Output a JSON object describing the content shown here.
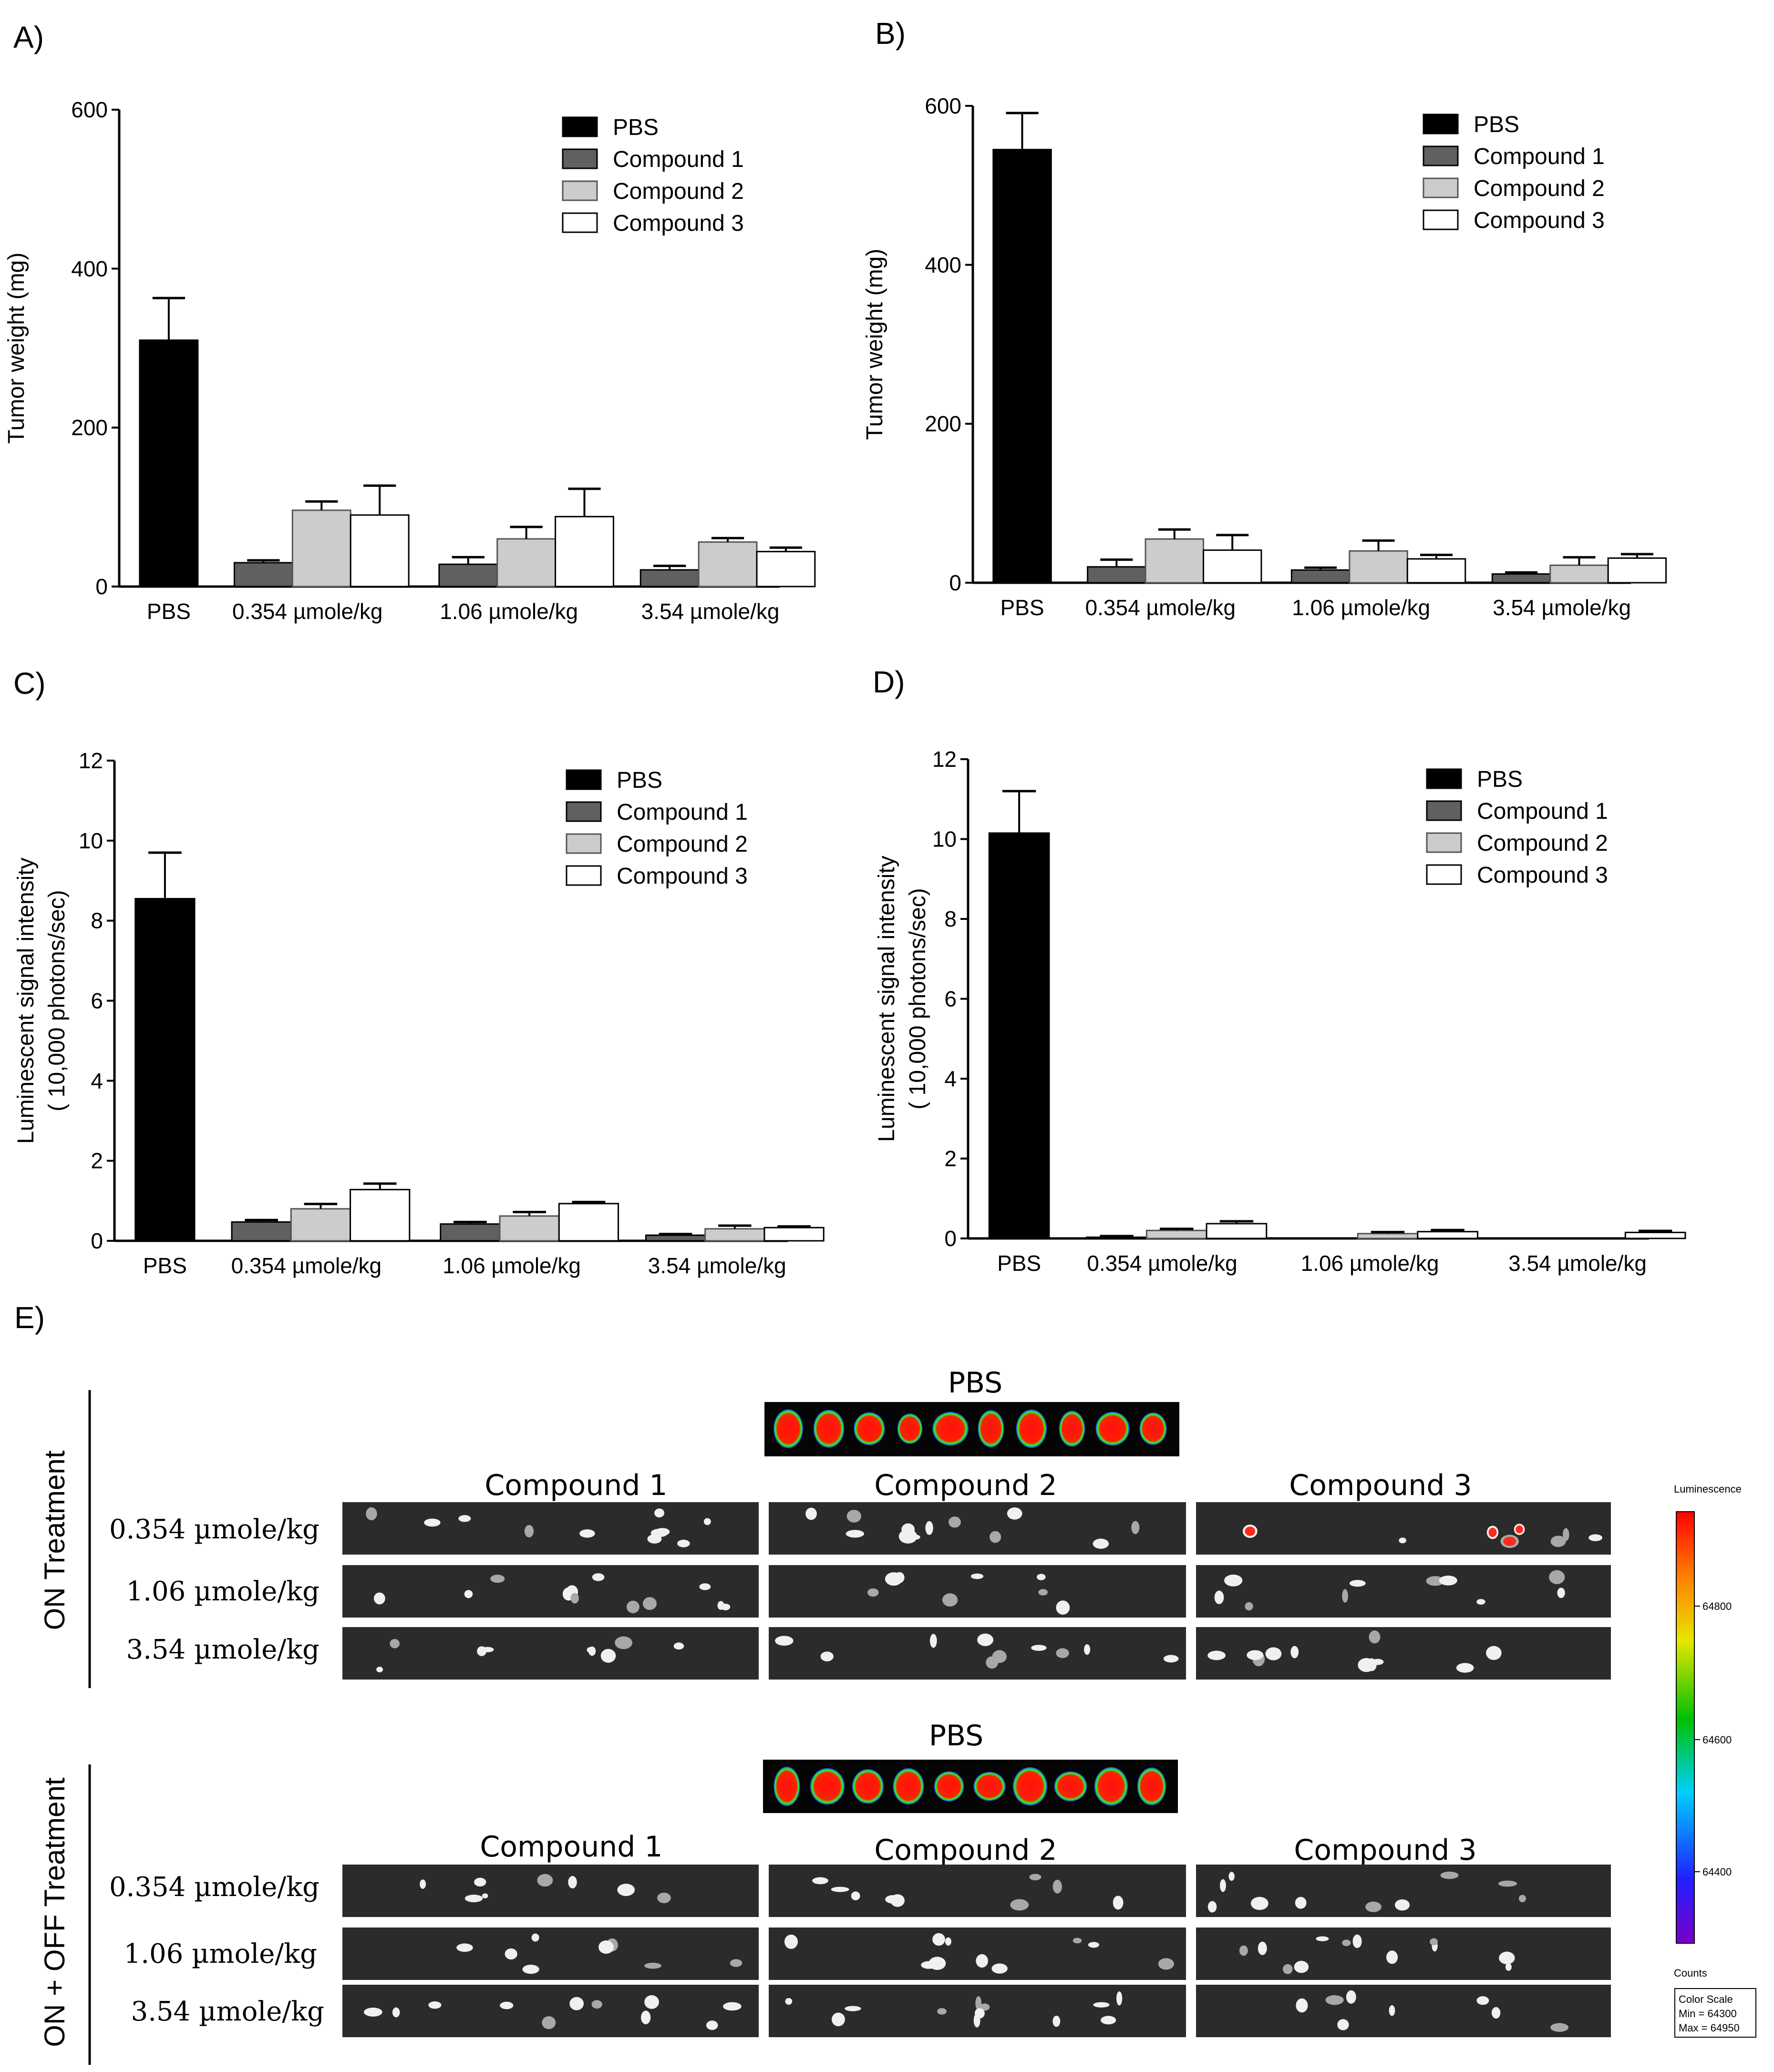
{
  "chart_data": [
    {
      "type": "bar",
      "panel": "A)",
      "ylabel": "Tumor weight (mg)",
      "ylim": [
        0,
        600
      ],
      "yticks": [
        "0",
        "200",
        "400",
        "600"
      ],
      "categories": [
        "PBS",
        "0.354 µmole/kg",
        "1.06 µmole/kg",
        "3.54 µmole/kg"
      ],
      "legend": [
        "PBS",
        "Compound 1",
        "Compound 2",
        "Compound 3"
      ],
      "series": [
        {
          "name": "PBS",
          "values": [
            310,
            null,
            null,
            null
          ],
          "errors": [
            53,
            null,
            null,
            null
          ]
        },
        {
          "name": "Compound 1",
          "values": [
            null,
            30,
            28,
            21
          ],
          "errors": [
            null,
            3,
            9,
            5
          ]
        },
        {
          "name": "Compound 2",
          "values": [
            null,
            96,
            60,
            56
          ],
          "errors": [
            null,
            11,
            15,
            5
          ]
        },
        {
          "name": "Compound 3",
          "values": [
            null,
            90,
            88,
            44
          ],
          "errors": [
            null,
            37,
            35,
            5
          ]
        }
      ]
    },
    {
      "type": "bar",
      "panel": "B)",
      "ylabel": "Tumor weight (mg)",
      "ylim": [
        0,
        600
      ],
      "yticks": [
        "0",
        "200",
        "400",
        "600"
      ],
      "categories": [
        "PBS",
        "0.354 µmole/kg",
        "1.06 µmole/kg",
        "3.54 µmole/kg"
      ],
      "legend": [
        "PBS",
        "Compound 1",
        "Compound 2",
        "Compound 3"
      ],
      "series": [
        {
          "name": "PBS",
          "values": [
            545,
            null,
            null,
            null
          ],
          "errors": [
            46,
            null,
            null,
            null
          ]
        },
        {
          "name": "Compound 1",
          "values": [
            null,
            20,
            16,
            11
          ],
          "errors": [
            null,
            9,
            3,
            2
          ]
        },
        {
          "name": "Compound 2",
          "values": [
            null,
            55,
            40,
            22
          ],
          "errors": [
            null,
            12,
            13,
            10
          ]
        },
        {
          "name": "Compound 3",
          "values": [
            null,
            41,
            30,
            31
          ],
          "errors": [
            null,
            19,
            5,
            5
          ]
        }
      ]
    },
    {
      "type": "bar",
      "panel": "C)",
      "ylabel": "Luminescent signal intensity",
      "ylabel2": "( 10,000 photons/sec)",
      "ylim": [
        0,
        12
      ],
      "yticks": [
        "0",
        "2",
        "4",
        "6",
        "8",
        "10",
        "12"
      ],
      "categories": [
        "PBS",
        "0.354 µmole/kg",
        "1.06 µmole/kg",
        "3.54 µmole/kg"
      ],
      "legend": [
        "PBS",
        "Compound 1",
        "Compound 2",
        "Compound 3"
      ],
      "series": [
        {
          "name": "PBS",
          "values": [
            8.55,
            null,
            null,
            null
          ],
          "errors": [
            1.15,
            null,
            null,
            null
          ]
        },
        {
          "name": "Compound 1",
          "values": [
            null,
            0.47,
            0.42,
            0.14
          ],
          "errors": [
            null,
            0.05,
            0.05,
            0.03
          ]
        },
        {
          "name": "Compound 2",
          "values": [
            null,
            0.8,
            0.62,
            0.3
          ],
          "errors": [
            null,
            0.12,
            0.1,
            0.08
          ]
        },
        {
          "name": "Compound 3",
          "values": [
            null,
            1.28,
            0.93,
            0.33
          ],
          "errors": [
            null,
            0.15,
            0.04,
            0.03
          ]
        }
      ]
    },
    {
      "type": "bar",
      "panel": "D)",
      "ylabel": "Luminescent signal intensity",
      "ylabel2": "( 10,000 photons/sec)",
      "ylim": [
        0,
        12
      ],
      "yticks": [
        "0",
        "2",
        "4",
        "6",
        "8",
        "10",
        "12"
      ],
      "categories": [
        "PBS",
        "0.354 µmole/kg",
        "1.06 µmole/kg",
        "3.54 µmole/kg"
      ],
      "legend": [
        "PBS",
        "Compound 1",
        "Compound 2",
        "Compound 3"
      ],
      "series": [
        {
          "name": "PBS",
          "values": [
            10.15,
            null,
            null,
            null
          ],
          "errors": [
            1.05,
            null,
            null,
            null
          ]
        },
        {
          "name": "Compound 1",
          "values": [
            null,
            0.03,
            0.0,
            0.0
          ],
          "errors": [
            null,
            0.03,
            0.0,
            0.0
          ]
        },
        {
          "name": "Compound 2",
          "values": [
            null,
            0.2,
            0.12,
            0.0
          ],
          "errors": [
            null,
            0.04,
            0.04,
            0.0
          ]
        },
        {
          "name": "Compound 3",
          "values": [
            null,
            0.37,
            0.17,
            0.15
          ],
          "errors": [
            null,
            0.06,
            0.04,
            0.04
          ]
        }
      ]
    }
  ],
  "series_colors": [
    "#000000",
    "#606060",
    "#cccccc",
    "#ffffff"
  ],
  "panel_e": {
    "label": "E)",
    "groups": [
      {
        "side_label": "ON Treatment",
        "pbs_title": "PBS",
        "compounds": [
          "Compound 1",
          "Compound 2",
          "Compound 3"
        ],
        "doses": [
          "0.354 µmole/kg",
          "1.06 µmole/kg",
          "3.54 µmole/kg"
        ]
      },
      {
        "side_label": "ON + OFF Treatment",
        "pbs_title": "PBS",
        "compounds": [
          "Compound 1",
          "Compound 2",
          "Compound 3"
        ],
        "doses": [
          "0.354 µmole/kg",
          "1.06 µmole/kg",
          "3.54 µmole/kg"
        ]
      }
    ],
    "colorbar": {
      "title": "Luminescence",
      "ticks": [
        "64800",
        "64600",
        "64400"
      ],
      "units": "Counts",
      "scale_lines": [
        "Color Scale",
        "Min = 64300",
        "Max = 64950"
      ]
    }
  }
}
